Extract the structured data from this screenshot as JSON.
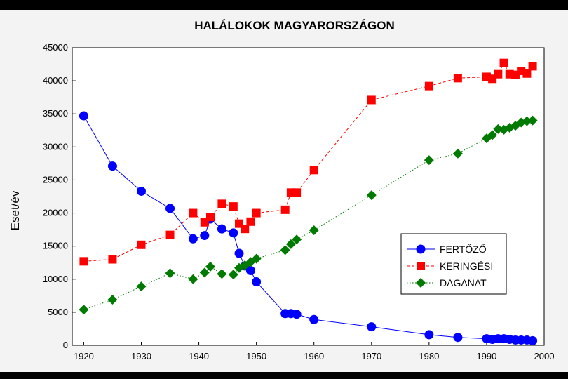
{
  "chart_data": {
    "type": "line",
    "title": "HALÁLOKOK MAGYARORSZÁGON",
    "xlabel": "",
    "ylabel": "Eset/év",
    "xlim": [
      1918,
      2000
    ],
    "ylim": [
      0,
      45000
    ],
    "xticks": [
      1920,
      1930,
      1940,
      1950,
      1960,
      1970,
      1980,
      1990,
      2000
    ],
    "yticks": [
      0,
      5000,
      10000,
      15000,
      20000,
      25000,
      30000,
      35000,
      40000,
      45000
    ],
    "legend_position": "center-right",
    "series": [
      {
        "name": "FERTŐZŐ",
        "color": "#0000ff",
        "marker": "circle",
        "line": "solid",
        "points": [
          [
            1920,
            34700
          ],
          [
            1925,
            27100
          ],
          [
            1930,
            23300
          ],
          [
            1935,
            20700
          ],
          [
            1939,
            16100
          ],
          [
            1941,
            16600
          ],
          [
            1942,
            19100
          ],
          [
            1944,
            17600
          ],
          [
            1946,
            17000
          ],
          [
            1947,
            13900
          ],
          [
            1948,
            12000
          ],
          [
            1949,
            11300
          ],
          [
            1950,
            9600
          ],
          [
            1955,
            4800
          ],
          [
            1956,
            4800
          ],
          [
            1957,
            4700
          ],
          [
            1960,
            3900
          ],
          [
            1970,
            2800
          ],
          [
            1980,
            1600
          ],
          [
            1985,
            1200
          ],
          [
            1990,
            1000
          ],
          [
            1991,
            900
          ],
          [
            1992,
            1000
          ],
          [
            1993,
            1000
          ],
          [
            1994,
            900
          ],
          [
            1995,
            800
          ],
          [
            1996,
            800
          ],
          [
            1997,
            800
          ],
          [
            1998,
            700
          ]
        ]
      },
      {
        "name": "KERINGÉSI",
        "color": "#ff0000",
        "marker": "square",
        "line": "dashed",
        "points": [
          [
            1920,
            12700
          ],
          [
            1925,
            13000
          ],
          [
            1930,
            15200
          ],
          [
            1935,
            16700
          ],
          [
            1939,
            20000
          ],
          [
            1941,
            18600
          ],
          [
            1942,
            19400
          ],
          [
            1944,
            21400
          ],
          [
            1946,
            21000
          ],
          [
            1947,
            18400
          ],
          [
            1948,
            17600
          ],
          [
            1949,
            18700
          ],
          [
            1950,
            20000
          ],
          [
            1955,
            20500
          ],
          [
            1956,
            23100
          ],
          [
            1957,
            23100
          ],
          [
            1960,
            26500
          ],
          [
            1970,
            37100
          ],
          [
            1980,
            39200
          ],
          [
            1985,
            40400
          ],
          [
            1990,
            40600
          ],
          [
            1991,
            40300
          ],
          [
            1992,
            41000
          ],
          [
            1993,
            42700
          ],
          [
            1994,
            41000
          ],
          [
            1995,
            40900
          ],
          [
            1996,
            41500
          ],
          [
            1997,
            41100
          ],
          [
            1998,
            42200
          ]
        ]
      },
      {
        "name": "DAGANAT",
        "color": "#007a00",
        "marker": "diamond",
        "line": "dotted",
        "points": [
          [
            1920,
            5400
          ],
          [
            1925,
            6900
          ],
          [
            1930,
            8900
          ],
          [
            1935,
            10900
          ],
          [
            1939,
            10000
          ],
          [
            1941,
            11000
          ],
          [
            1942,
            11900
          ],
          [
            1944,
            10800
          ],
          [
            1946,
            10700
          ],
          [
            1947,
            11700
          ],
          [
            1948,
            12100
          ],
          [
            1949,
            12600
          ],
          [
            1950,
            13100
          ],
          [
            1955,
            14400
          ],
          [
            1956,
            15300
          ],
          [
            1957,
            16000
          ],
          [
            1960,
            17400
          ],
          [
            1970,
            22700
          ],
          [
            1980,
            28000
          ],
          [
            1985,
            29000
          ],
          [
            1990,
            31300
          ],
          [
            1991,
            31800
          ],
          [
            1992,
            32700
          ],
          [
            1993,
            32600
          ],
          [
            1994,
            32900
          ],
          [
            1995,
            33200
          ],
          [
            1996,
            33700
          ],
          [
            1997,
            33900
          ],
          [
            1998,
            34000
          ]
        ]
      }
    ]
  }
}
